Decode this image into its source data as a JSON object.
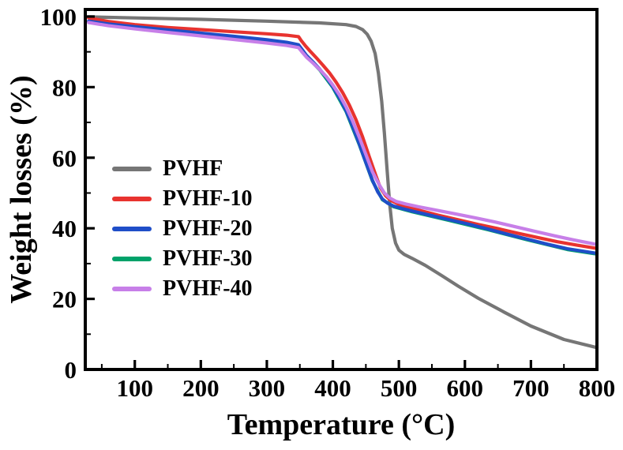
{
  "chart_data": {
    "type": "line",
    "title": "",
    "xlabel": "Temperature (°C)",
    "ylabel": "Weight losses (%)",
    "xlim": [
      25,
      800
    ],
    "ylim": [
      0,
      102
    ],
    "x_ticks": [
      100,
      200,
      300,
      400,
      500,
      600,
      700,
      800
    ],
    "x_minor_ticks": [
      50,
      150,
      250,
      350,
      450,
      550,
      650,
      750
    ],
    "y_ticks": [
      0,
      20,
      40,
      60,
      80,
      100
    ],
    "y_minor_ticks": [
      10,
      30,
      50,
      70,
      90
    ],
    "grid": false,
    "legend_position": "center-left",
    "frame": true,
    "axis_color": "#000000",
    "draw_order": [
      0,
      1,
      3,
      2,
      4
    ],
    "series": [
      {
        "name": "PVHF",
        "color": "#767676",
        "points": [
          [
            30,
            99.9
          ],
          [
            100,
            99.6
          ],
          [
            200,
            99.2
          ],
          [
            300,
            98.7
          ],
          [
            380,
            98.2
          ],
          [
            420,
            97.7
          ],
          [
            435,
            97.2
          ],
          [
            445,
            96.3
          ],
          [
            452,
            95.0
          ],
          [
            458,
            93.0
          ],
          [
            464,
            89.5
          ],
          [
            469,
            84.0
          ],
          [
            474,
            76.0
          ],
          [
            478,
            67.0
          ],
          [
            482,
            57.0
          ],
          [
            486,
            47.0
          ],
          [
            490,
            40.0
          ],
          [
            495,
            35.8
          ],
          [
            500,
            33.8
          ],
          [
            508,
            32.6
          ],
          [
            520,
            31.5
          ],
          [
            540,
            29.5
          ],
          [
            565,
            26.6
          ],
          [
            590,
            23.6
          ],
          [
            620,
            20.2
          ],
          [
            660,
            16.2
          ],
          [
            700,
            12.3
          ],
          [
            750,
            8.5
          ],
          [
            800,
            6.2
          ]
        ]
      },
      {
        "name": "PVHF-10",
        "color": "#e8332f",
        "points": [
          [
            30,
            99.6
          ],
          [
            60,
            98.6
          ],
          [
            100,
            97.7
          ],
          [
            150,
            96.9
          ],
          [
            200,
            96.3
          ],
          [
            250,
            95.7
          ],
          [
            300,
            95.1
          ],
          [
            330,
            94.7
          ],
          [
            348,
            94.3
          ],
          [
            352,
            93.2
          ],
          [
            358,
            91.8
          ],
          [
            365,
            90.3
          ],
          [
            375,
            88.3
          ],
          [
            385,
            86.2
          ],
          [
            395,
            84.0
          ],
          [
            405,
            81.4
          ],
          [
            415,
            78.4
          ],
          [
            425,
            74.9
          ],
          [
            435,
            70.8
          ],
          [
            445,
            65.9
          ],
          [
            455,
            60.4
          ],
          [
            465,
            55.0
          ],
          [
            472,
            51.5
          ],
          [
            480,
            49.2
          ],
          [
            488,
            47.9
          ],
          [
            500,
            46.8
          ],
          [
            515,
            45.9
          ],
          [
            535,
            44.9
          ],
          [
            560,
            43.7
          ],
          [
            590,
            42.4
          ],
          [
            620,
            41.1
          ],
          [
            650,
            39.9
          ],
          [
            680,
            38.6
          ],
          [
            710,
            37.4
          ],
          [
            740,
            36.2
          ],
          [
            770,
            35.2
          ],
          [
            800,
            34.3
          ]
        ]
      },
      {
        "name": "PVHF-20",
        "color": "#1f4ec8",
        "points": [
          [
            30,
            98.7
          ],
          [
            60,
            97.9
          ],
          [
            100,
            97.1
          ],
          [
            150,
            96.2
          ],
          [
            200,
            95.3
          ],
          [
            250,
            94.4
          ],
          [
            300,
            93.4
          ],
          [
            330,
            92.7
          ],
          [
            348,
            92.0
          ],
          [
            354,
            90.5
          ],
          [
            360,
            89.0
          ],
          [
            370,
            87.1
          ],
          [
            380,
            85.1
          ],
          [
            390,
            82.8
          ],
          [
            400,
            80.1
          ],
          [
            410,
            77.0
          ],
          [
            420,
            73.3
          ],
          [
            430,
            68.9
          ],
          [
            440,
            63.9
          ],
          [
            450,
            58.6
          ],
          [
            460,
            53.6
          ],
          [
            468,
            50.3
          ],
          [
            475,
            48.3
          ],
          [
            483,
            47.1
          ],
          [
            492,
            46.3
          ],
          [
            505,
            45.6
          ],
          [
            520,
            44.9
          ],
          [
            545,
            43.8
          ],
          [
            575,
            42.5
          ],
          [
            605,
            41.2
          ],
          [
            635,
            39.8
          ],
          [
            665,
            38.3
          ],
          [
            695,
            36.9
          ],
          [
            725,
            35.5
          ],
          [
            755,
            34.2
          ],
          [
            800,
            32.9
          ]
        ]
      },
      {
        "name": "PVHF-30",
        "color": "#00a26a",
        "points": [
          [
            30,
            98.5
          ],
          [
            100,
            96.9
          ],
          [
            200,
            95.1
          ],
          [
            300,
            93.2
          ],
          [
            348,
            91.8
          ],
          [
            360,
            88.8
          ],
          [
            380,
            84.9
          ],
          [
            400,
            79.9
          ],
          [
            420,
            73.1
          ],
          [
            440,
            63.7
          ],
          [
            460,
            53.4
          ],
          [
            475,
            48.1
          ],
          [
            492,
            46.1
          ],
          [
            520,
            44.7
          ],
          [
            575,
            42.3
          ],
          [
            635,
            39.6
          ],
          [
            695,
            36.7
          ],
          [
            755,
            34.0
          ],
          [
            800,
            32.7
          ]
        ]
      },
      {
        "name": "PVHF-40",
        "color": "#c77fe8",
        "points": [
          [
            30,
            98.3
          ],
          [
            60,
            97.4
          ],
          [
            100,
            96.5
          ],
          [
            150,
            95.5
          ],
          [
            200,
            94.5
          ],
          [
            250,
            93.5
          ],
          [
            300,
            92.5
          ],
          [
            330,
            91.8
          ],
          [
            348,
            91.2
          ],
          [
            354,
            89.8
          ],
          [
            360,
            88.5
          ],
          [
            370,
            86.8
          ],
          [
            380,
            85.0
          ],
          [
            390,
            83.0
          ],
          [
            400,
            80.6
          ],
          [
            410,
            77.8
          ],
          [
            420,
            74.4
          ],
          [
            430,
            70.4
          ],
          [
            440,
            65.8
          ],
          [
            450,
            60.9
          ],
          [
            460,
            56.0
          ],
          [
            470,
            52.4
          ],
          [
            478,
            50.0
          ],
          [
            486,
            48.6
          ],
          [
            496,
            47.6
          ],
          [
            510,
            46.9
          ],
          [
            530,
            46.1
          ],
          [
            555,
            45.2
          ],
          [
            585,
            44.1
          ],
          [
            615,
            43.0
          ],
          [
            645,
            41.8
          ],
          [
            675,
            40.5
          ],
          [
            705,
            39.2
          ],
          [
            735,
            37.9
          ],
          [
            765,
            36.7
          ],
          [
            800,
            35.4
          ]
        ]
      }
    ]
  }
}
